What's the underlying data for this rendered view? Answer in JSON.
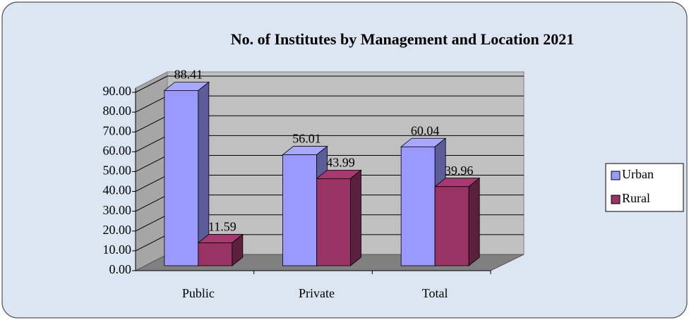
{
  "chart_data": {
    "type": "bar3d",
    "title": "No. of Institutes by Management and Location 2021",
    "categories": [
      "Public",
      "Private",
      "Total"
    ],
    "series": [
      {
        "name": "Urban",
        "color": "#9999ff",
        "values": [
          88.41,
          56.01,
          60.04
        ]
      },
      {
        "name": "Rural",
        "color": "#993366",
        "values": [
          11.59,
          43.99,
          39.96
        ]
      }
    ],
    "ylim": [
      0,
      90
    ],
    "yticks": [
      {
        "value": 0,
        "label": "0.00"
      },
      {
        "value": 10,
        "label": "10.00"
      },
      {
        "value": 20,
        "label": "20.00"
      },
      {
        "value": 30,
        "label": "30.00"
      },
      {
        "value": 40,
        "label": "40.00"
      },
      {
        "value": 50,
        "label": "50.00"
      },
      {
        "value": 60,
        "label": "60.00"
      },
      {
        "value": 70,
        "label": "70.00"
      },
      {
        "value": 80,
        "label": "80.00"
      },
      {
        "value": 90,
        "label": "90.00"
      }
    ],
    "grid": true,
    "legend": "right"
  }
}
